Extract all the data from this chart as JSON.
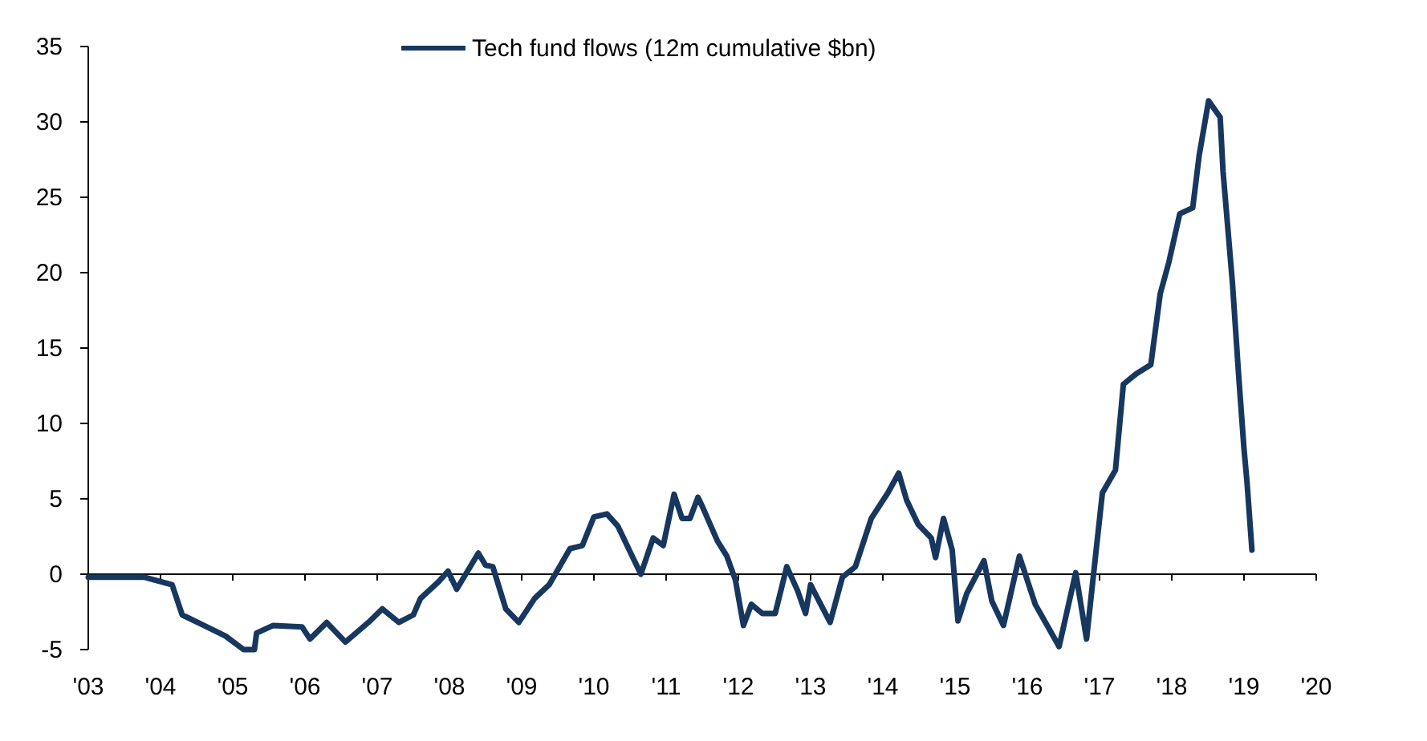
{
  "chart_data": {
    "type": "line",
    "xlim": [
      2003,
      2020
    ],
    "xticks": [
      {
        "value": 2003,
        "label": "'03"
      },
      {
        "value": 2004,
        "label": "'04"
      },
      {
        "value": 2005,
        "label": "'05"
      },
      {
        "value": 2006,
        "label": "'06"
      },
      {
        "value": 2007,
        "label": "'07"
      },
      {
        "value": 2008,
        "label": "'08"
      },
      {
        "value": 2009,
        "label": "'09"
      },
      {
        "value": 2010,
        "label": "'10"
      },
      {
        "value": 2011,
        "label": "'11"
      },
      {
        "value": 2012,
        "label": "'12"
      },
      {
        "value": 2013,
        "label": "'13"
      },
      {
        "value": 2014,
        "label": "'14"
      },
      {
        "value": 2015,
        "label": "'15"
      },
      {
        "value": 2016,
        "label": "'16"
      },
      {
        "value": 2017,
        "label": "'17"
      },
      {
        "value": 2018,
        "label": "'18"
      },
      {
        "value": 2019,
        "label": "'19"
      },
      {
        "value": 2020,
        "label": "'20"
      }
    ],
    "ylim": [
      -5,
      35
    ],
    "yticks": [
      -5,
      0,
      5,
      10,
      15,
      20,
      25,
      30,
      35
    ],
    "legend": "top",
    "series": [
      {
        "name": "Tech fund flows (12m cumulative $bn)",
        "color": "#17375e",
        "x": [
          2003.0,
          2003.78,
          2004.16,
          2004.3,
          2004.6,
          2004.9,
          2005.15,
          2005.3,
          2005.33,
          2005.56,
          2005.96,
          2006.07,
          2006.3,
          2006.56,
          2006.9,
          2007.07,
          2007.3,
          2007.5,
          2007.6,
          2007.85,
          2007.98,
          2008.1,
          2008.4,
          2008.5,
          2008.6,
          2008.78,
          2008.96,
          2009.18,
          2009.38,
          2009.67,
          2009.84,
          2010.0,
          2010.18,
          2010.33,
          2010.49,
          2010.65,
          2010.82,
          2010.96,
          2011.11,
          2011.22,
          2011.33,
          2011.44,
          2011.51,
          2011.71,
          2011.84,
          2011.96,
          2012.07,
          2012.18,
          2012.33,
          2012.51,
          2012.67,
          2012.82,
          2012.93,
          2013.0,
          2013.27,
          2013.44,
          2013.62,
          2013.84,
          2014.07,
          2014.22,
          2014.33,
          2014.49,
          2014.67,
          2014.73,
          2014.84,
          2014.96,
          2015.04,
          2015.16,
          2015.4,
          2015.51,
          2015.67,
          2015.89,
          2016.11,
          2016.44,
          2016.67,
          2016.82,
          2016.96,
          2017.04,
          2017.22,
          2017.33,
          2017.51,
          2017.71,
          2017.84,
          2017.96,
          2018.11,
          2018.29,
          2018.38,
          2018.51,
          2018.67,
          2018.71,
          2018.84,
          2018.93,
          2019.0,
          2019.04,
          2019.11
        ],
        "values": [
          -0.2,
          -0.2,
          -0.7,
          -2.7,
          -3.4,
          -4.1,
          -5.0,
          -5.0,
          -3.9,
          -3.4,
          -3.5,
          -4.3,
          -3.2,
          -4.5,
          -3.1,
          -2.3,
          -3.2,
          -2.7,
          -1.6,
          -0.5,
          0.2,
          -1.0,
          1.4,
          0.6,
          0.5,
          -2.3,
          -3.2,
          -1.6,
          -0.7,
          1.7,
          1.9,
          3.8,
          4.0,
          3.2,
          1.6,
          0.0,
          2.4,
          1.9,
          5.3,
          3.7,
          3.7,
          5.1,
          4.4,
          2.2,
          1.2,
          -0.4,
          -3.4,
          -2.0,
          -2.6,
          -2.6,
          0.5,
          -1.1,
          -2.6,
          -0.7,
          -3.2,
          -0.2,
          0.5,
          3.7,
          5.4,
          6.7,
          4.9,
          3.3,
          2.4,
          1.1,
          3.7,
          1.6,
          -3.1,
          -1.3,
          0.9,
          -1.8,
          -3.4,
          1.2,
          -2.0,
          -4.8,
          0.1,
          -4.3,
          1.9,
          5.4,
          6.9,
          12.6,
          13.3,
          13.9,
          18.6,
          20.7,
          23.9,
          24.3,
          27.8,
          31.4,
          30.3,
          26.7,
          19.3,
          12.9,
          8.3,
          6.2,
          1.6
        ]
      }
    ]
  }
}
